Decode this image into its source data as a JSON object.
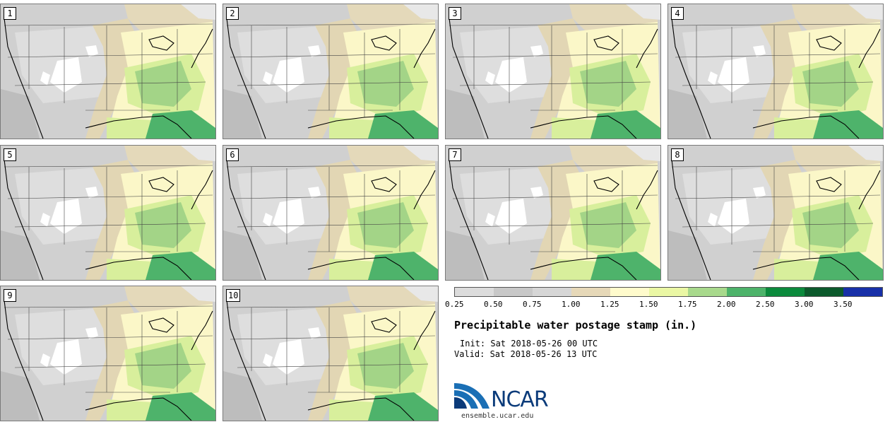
{
  "panels": [
    {
      "label": "1"
    },
    {
      "label": "2"
    },
    {
      "label": "3"
    },
    {
      "label": "4"
    },
    {
      "label": "5"
    },
    {
      "label": "6"
    },
    {
      "label": "7"
    },
    {
      "label": "8"
    },
    {
      "label": "9"
    },
    {
      "label": "10"
    }
  ],
  "colorbar": {
    "colors": [
      "#dcdcdc",
      "#c8c8c8",
      "#d6d6d6",
      "#e6d8b8",
      "#fffbcc",
      "#eaf7a4",
      "#a8d98c",
      "#4db36a",
      "#0b8a3c",
      "#0c5a2c",
      "#1830a8"
    ],
    "ticks": [
      "0.25",
      "0.50",
      "0.75",
      "1.00",
      "1.25",
      "1.50",
      "1.75",
      "2.00",
      "2.50",
      "3.00",
      "3.50"
    ]
  },
  "title": "Precipitable water postage stamp (in.)",
  "init": "Init: Sat 2018-05-26 00 UTC",
  "valid": "Valid: Sat 2018-05-26 13 UTC",
  "logo": {
    "text": "NCAR",
    "url": "ensemble.ucar.edu"
  }
}
